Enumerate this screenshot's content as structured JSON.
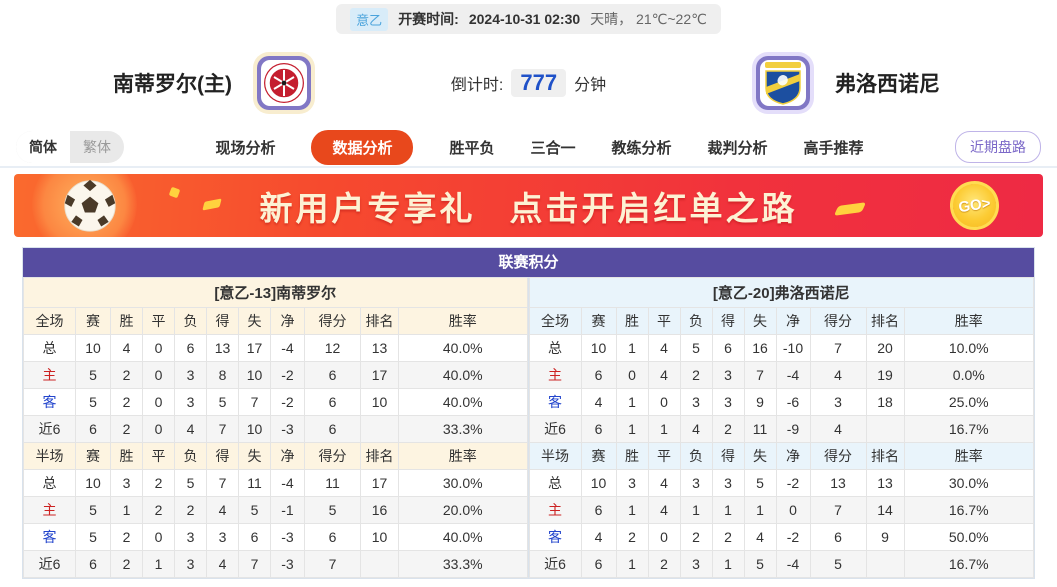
{
  "top_bar": {
    "league_badge": "意乙",
    "kickoff_label": "开赛时间:",
    "kickoff_time": "2024-10-31 02:30",
    "weather": "天晴， 21℃~22℃"
  },
  "match_header": {
    "home_name": "南蒂罗尔(主)",
    "away_name": "弗洛西诺尼",
    "countdown_label": "倒计时:",
    "countdown_value": "777",
    "countdown_unit": "分钟"
  },
  "nav": {
    "lang_simplified": "简体",
    "lang_traditional": "繁体",
    "tabs": [
      {
        "label": "现场分析",
        "active": false
      },
      {
        "label": "数据分析",
        "active": true
      },
      {
        "label": "胜平负",
        "active": false
      },
      {
        "label": "三合一",
        "active": false
      },
      {
        "label": "教练分析",
        "active": false
      },
      {
        "label": "裁判分析",
        "active": false
      },
      {
        "label": "高手推荐",
        "active": false
      }
    ],
    "recent_trend_button": "近期盘路"
  },
  "banner": {
    "text1": "新用户专享礼",
    "text2": "点击开启红单之路",
    "go_label": "GO>"
  },
  "league_table": {
    "title": "联赛积分",
    "full_label": "全场",
    "half_label": "半场",
    "columns": [
      "赛",
      "胜",
      "平",
      "负",
      "得",
      "失",
      "净",
      "得分",
      "排名",
      "胜率"
    ],
    "home": {
      "team_header": "[意乙-13]南蒂罗尔",
      "full_rows": [
        {
          "label": "总",
          "values": [
            "10",
            "4",
            "0",
            "6",
            "13",
            "17",
            "-4",
            "12",
            "13",
            "40.0%"
          ]
        },
        {
          "label": "主",
          "values": [
            "5",
            "2",
            "0",
            "3",
            "8",
            "10",
            "-2",
            "6",
            "17",
            "40.0%"
          ]
        },
        {
          "label": "客",
          "values": [
            "5",
            "2",
            "0",
            "3",
            "5",
            "7",
            "-2",
            "6",
            "10",
            "40.0%"
          ]
        },
        {
          "label": "近6",
          "values": [
            "6",
            "2",
            "0",
            "4",
            "7",
            "10",
            "-3",
            "6",
            "",
            "33.3%"
          ]
        }
      ],
      "half_rows": [
        {
          "label": "总",
          "values": [
            "10",
            "3",
            "2",
            "5",
            "7",
            "11",
            "-4",
            "11",
            "17",
            "30.0%"
          ]
        },
        {
          "label": "主",
          "values": [
            "5",
            "1",
            "2",
            "2",
            "4",
            "5",
            "-1",
            "5",
            "16",
            "20.0%"
          ]
        },
        {
          "label": "客",
          "values": [
            "5",
            "2",
            "0",
            "3",
            "3",
            "6",
            "-3",
            "6",
            "10",
            "40.0%"
          ]
        },
        {
          "label": "近6",
          "values": [
            "6",
            "2",
            "1",
            "3",
            "4",
            "7",
            "-3",
            "7",
            "",
            "33.3%"
          ]
        }
      ]
    },
    "away": {
      "team_header": "[意乙-20]弗洛西诺尼",
      "full_rows": [
        {
          "label": "总",
          "values": [
            "10",
            "1",
            "4",
            "5",
            "6",
            "16",
            "-10",
            "7",
            "20",
            "10.0%"
          ]
        },
        {
          "label": "主",
          "values": [
            "6",
            "0",
            "4",
            "2",
            "3",
            "7",
            "-4",
            "4",
            "19",
            "0.0%"
          ]
        },
        {
          "label": "客",
          "values": [
            "4",
            "1",
            "0",
            "3",
            "3",
            "9",
            "-6",
            "3",
            "18",
            "25.0%"
          ]
        },
        {
          "label": "近6",
          "values": [
            "6",
            "1",
            "1",
            "4",
            "2",
            "11",
            "-9",
            "4",
            "",
            "16.7%"
          ]
        }
      ],
      "half_rows": [
        {
          "label": "总",
          "values": [
            "10",
            "3",
            "4",
            "3",
            "3",
            "5",
            "-2",
            "13",
            "13",
            "30.0%"
          ]
        },
        {
          "label": "主",
          "values": [
            "6",
            "1",
            "4",
            "1",
            "1",
            "1",
            "0",
            "7",
            "14",
            "16.7%"
          ]
        },
        {
          "label": "客",
          "values": [
            "4",
            "2",
            "0",
            "2",
            "2",
            "4",
            "-2",
            "6",
            "9",
            "50.0%"
          ]
        },
        {
          "label": "近6",
          "values": [
            "6",
            "1",
            "2",
            "3",
            "1",
            "5",
            "-4",
            "5",
            "",
            "16.7%"
          ]
        }
      ]
    }
  },
  "colors": {
    "accent_purple": "#564ca0",
    "active_tab": "#e8481c",
    "banner_red": "#f1323c",
    "home_header_bg": "#fdf4e1",
    "away_header_bg": "#e9f4fb",
    "home_row_red": "#cc2222",
    "away_row_blue": "#2244cc",
    "countdown_blue": "#1f51c8"
  }
}
